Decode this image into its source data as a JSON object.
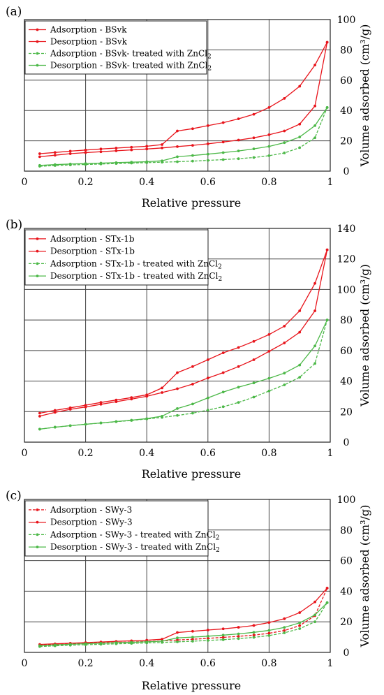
{
  "chart_data": [
    {
      "type": "line",
      "panel_label": "(a)",
      "xlabel": "Relative pressure",
      "ylabel": "Volume adsorbed (cm³/g)",
      "xlim": [
        0,
        1
      ],
      "ylim": [
        0,
        100
      ],
      "xticks": [
        0,
        0.2,
        0.4,
        0.6,
        0.8,
        1
      ],
      "yticks": [
        0,
        20,
        40,
        60,
        80,
        100
      ],
      "y_axis_side": "right",
      "grid": true,
      "legend_position": "top-left",
      "series": [
        {
          "name": "Adsorption - BSvk",
          "sub": "",
          "color": "#e8141b",
          "dashed": false,
          "x": [
            0.05,
            0.1,
            0.15,
            0.2,
            0.25,
            0.3,
            0.35,
            0.4,
            0.45,
            0.5,
            0.55,
            0.6,
            0.65,
            0.7,
            0.75,
            0.8,
            0.85,
            0.9,
            0.95,
            0.99
          ],
          "y": [
            9.5,
            10.5,
            11.5,
            12.2,
            12.8,
            13.4,
            14.0,
            14.6,
            15.3,
            16.2,
            17.0,
            18.0,
            19.2,
            20.5,
            22,
            24,
            26.5,
            31,
            43,
            85
          ]
        },
        {
          "name": "Desorption - BSvk",
          "sub": "",
          "color": "#e8141b",
          "dashed": false,
          "x": [
            0.05,
            0.1,
            0.15,
            0.2,
            0.25,
            0.3,
            0.35,
            0.4,
            0.45,
            0.5,
            0.55,
            0.6,
            0.65,
            0.7,
            0.75,
            0.8,
            0.85,
            0.9,
            0.95,
            0.99
          ],
          "y": [
            11.5,
            12.3,
            13.2,
            13.9,
            14.6,
            15.2,
            15.8,
            16.4,
            17.5,
            26.5,
            28,
            30,
            32,
            34.5,
            37.5,
            42,
            48,
            56,
            70,
            85
          ]
        },
        {
          "name": "Adsorption - BSvk- treated with ZnCl",
          "sub": "2",
          "color": "#4cb848",
          "dashed": true,
          "x": [
            0.05,
            0.1,
            0.15,
            0.2,
            0.25,
            0.3,
            0.35,
            0.4,
            0.45,
            0.5,
            0.55,
            0.6,
            0.65,
            0.7,
            0.75,
            0.8,
            0.85,
            0.9,
            0.95,
            0.99
          ],
          "y": [
            3.2,
            3.7,
            4.1,
            4.4,
            4.7,
            5.0,
            5.3,
            5.6,
            5.9,
            6.2,
            6.6,
            7.1,
            7.6,
            8.2,
            9.0,
            10.2,
            12,
            15.5,
            22,
            42
          ]
        },
        {
          "name": "Desorption - BSvk- treated with ZnCl",
          "sub": "2",
          "color": "#4cb848",
          "dashed": false,
          "x": [
            0.05,
            0.1,
            0.15,
            0.2,
            0.25,
            0.3,
            0.35,
            0.4,
            0.45,
            0.5,
            0.55,
            0.6,
            0.65,
            0.7,
            0.75,
            0.8,
            0.85,
            0.9,
            0.95,
            0.99
          ],
          "y": [
            3.8,
            4.3,
            4.7,
            5.0,
            5.3,
            5.6,
            5.9,
            6.2,
            6.8,
            9.5,
            10.3,
            11.2,
            12.2,
            13.3,
            14.7,
            16.3,
            18.8,
            22.5,
            30,
            42
          ]
        }
      ]
    },
    {
      "type": "line",
      "panel_label": "(b)",
      "xlabel": "Relative pressure",
      "ylabel": "Volume adsorbed (cm³/g)",
      "xlim": [
        0,
        1
      ],
      "ylim": [
        0,
        140
      ],
      "xticks": [
        0,
        0.2,
        0.4,
        0.6,
        0.8,
        1
      ],
      "yticks": [
        0,
        20,
        40,
        60,
        80,
        100,
        120,
        140
      ],
      "y_axis_side": "right",
      "grid": true,
      "legend_position": "top-left",
      "series": [
        {
          "name": "Adsorption - STx-1b",
          "sub": "",
          "color": "#e8141b",
          "dashed": false,
          "x": [
            0.05,
            0.1,
            0.15,
            0.2,
            0.25,
            0.3,
            0.35,
            0.4,
            0.45,
            0.5,
            0.55,
            0.6,
            0.65,
            0.7,
            0.75,
            0.8,
            0.85,
            0.9,
            0.95,
            0.99
          ],
          "y": [
            17,
            19.5,
            21.5,
            23,
            24.8,
            26.5,
            28.2,
            30,
            32.5,
            35,
            38,
            42,
            45.5,
            49.5,
            54,
            59.5,
            65,
            72,
            86,
            126
          ]
        },
        {
          "name": "Desorption - STx-1b",
          "sub": "",
          "color": "#e8141b",
          "dashed": false,
          "x": [
            0.05,
            0.1,
            0.15,
            0.2,
            0.25,
            0.3,
            0.35,
            0.4,
            0.45,
            0.5,
            0.55,
            0.6,
            0.65,
            0.7,
            0.75,
            0.8,
            0.85,
            0.9,
            0.95,
            0.99
          ],
          "y": [
            19,
            20.8,
            22.5,
            24.2,
            26,
            27.6,
            29.2,
            31,
            35.5,
            45.5,
            49.5,
            54,
            58.5,
            62,
            66,
            70.5,
            76,
            86,
            104,
            126
          ]
        },
        {
          "name": "Adsorption - STx-1b - treated with ZnCl",
          "sub": "2",
          "color": "#4cb848",
          "dashed": true,
          "x": [
            0.05,
            0.1,
            0.15,
            0.2,
            0.25,
            0.3,
            0.35,
            0.4,
            0.45,
            0.5,
            0.55,
            0.6,
            0.65,
            0.7,
            0.75,
            0.8,
            0.85,
            0.9,
            0.95,
            0.99
          ],
          "y": [
            8.5,
            9.8,
            10.8,
            11.7,
            12.5,
            13.4,
            14.2,
            15.2,
            16.2,
            17.5,
            19,
            21,
            23.2,
            26,
            29.5,
            33.5,
            37.5,
            42.5,
            51.5,
            80
          ]
        },
        {
          "name": "Desorption - STx-1b - treated with ZnCl",
          "sub": "2",
          "color": "#4cb848",
          "dashed": false,
          "x": [
            0.05,
            0.1,
            0.15,
            0.2,
            0.25,
            0.3,
            0.35,
            0.4,
            0.45,
            0.5,
            0.55,
            0.6,
            0.65,
            0.7,
            0.75,
            0.8,
            0.85,
            0.9,
            0.95,
            0.99
          ],
          "y": [
            8.5,
            9.8,
            10.8,
            11.7,
            12.6,
            13.5,
            14.4,
            15.4,
            17,
            22,
            25,
            29,
            32.8,
            36,
            38.8,
            41.8,
            45.2,
            50.5,
            63,
            80
          ]
        }
      ]
    },
    {
      "type": "line",
      "panel_label": "(c)",
      "xlabel": "Relative pressure",
      "ylabel": "Volume adsorbed (cm³/g)",
      "xlim": [
        0,
        1
      ],
      "ylim": [
        0,
        100
      ],
      "xticks": [
        0,
        0.2,
        0.4,
        0.6,
        0.8,
        1
      ],
      "yticks": [
        0,
        20,
        40,
        60,
        80,
        100
      ],
      "y_axis_side": "right",
      "grid": true,
      "legend_position": "top-left",
      "series": [
        {
          "name": "Adsorption - SWy-3",
          "sub": "",
          "color": "#e8141b",
          "dashed": true,
          "x": [
            0.05,
            0.1,
            0.15,
            0.2,
            0.25,
            0.3,
            0.35,
            0.4,
            0.45,
            0.5,
            0.55,
            0.6,
            0.65,
            0.7,
            0.75,
            0.8,
            0.85,
            0.9,
            0.95,
            0.99
          ],
          "y": [
            4.8,
            5.2,
            5.6,
            5.9,
            6.2,
            6.5,
            6.8,
            7.1,
            7.5,
            8.1,
            8.6,
            9.2,
            9.8,
            10.5,
            11.3,
            12.5,
            14.3,
            17.5,
            24,
            42
          ]
        },
        {
          "name": "Desorption - SWy-3",
          "sub": "",
          "color": "#e8141b",
          "dashed": false,
          "x": [
            0.05,
            0.1,
            0.15,
            0.2,
            0.25,
            0.3,
            0.35,
            0.4,
            0.45,
            0.5,
            0.55,
            0.6,
            0.65,
            0.7,
            0.75,
            0.8,
            0.85,
            0.9,
            0.95,
            0.99
          ],
          "y": [
            5.2,
            5.6,
            6.0,
            6.4,
            6.8,
            7.2,
            7.6,
            8.0,
            8.6,
            13,
            13.8,
            14.6,
            15.4,
            16.4,
            17.6,
            19.5,
            22,
            26,
            33,
            42
          ]
        },
        {
          "name": "Adsorption - SWy-3 - treated with ZnCl",
          "sub": "2",
          "color": "#4cb848",
          "dashed": true,
          "x": [
            0.05,
            0.1,
            0.15,
            0.2,
            0.25,
            0.3,
            0.35,
            0.4,
            0.45,
            0.5,
            0.55,
            0.6,
            0.65,
            0.7,
            0.75,
            0.8,
            0.85,
            0.9,
            0.95,
            0.99
          ],
          "y": [
            3.8,
            4.3,
            4.7,
            5.0,
            5.3,
            5.6,
            5.9,
            6.2,
            6.5,
            6.9,
            7.3,
            7.8,
            8.3,
            9.0,
            9.8,
            11,
            12.8,
            15.5,
            20,
            32.5
          ]
        },
        {
          "name": "Desorption - SWy-3 - treated with ZnCl",
          "sub": "2",
          "color": "#4cb848",
          "dashed": false,
          "x": [
            0.05,
            0.1,
            0.15,
            0.2,
            0.25,
            0.3,
            0.35,
            0.4,
            0.45,
            0.5,
            0.55,
            0.6,
            0.65,
            0.7,
            0.75,
            0.8,
            0.85,
            0.9,
            0.95,
            0.99
          ],
          "y": [
            4.4,
            4.9,
            5.3,
            5.7,
            6.0,
            6.3,
            6.6,
            6.9,
            7.3,
            9.5,
            10,
            10.6,
            11.3,
            12.1,
            13.1,
            14.4,
            16.3,
            19.3,
            24.5,
            32.5
          ]
        }
      ]
    }
  ]
}
